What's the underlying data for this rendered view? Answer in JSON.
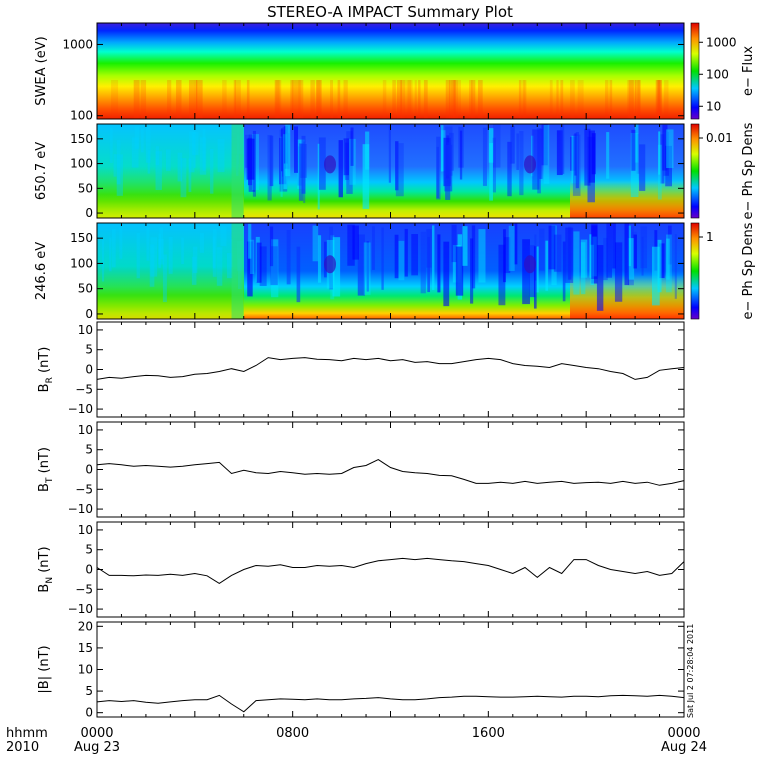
{
  "chart_data": {
    "type": "line",
    "title": "STEREO-A IMPACT Summary Plot",
    "x_axis": {
      "row1_label": "hhmm",
      "row2_label": "2010",
      "ticks": [
        {
          "hour": 0,
          "time": "0000",
          "date": "Aug 23"
        },
        {
          "hour": 8,
          "time": "0800",
          "date": ""
        },
        {
          "hour": 16,
          "time": "1600",
          "date": ""
        },
        {
          "hour": 24,
          "time": "0000",
          "date": "Aug 24"
        }
      ],
      "range_hours": [
        0,
        24
      ]
    },
    "spectrograms": [
      {
        "id": "swea",
        "ylabel": "SWEA (eV)",
        "yscale": "log",
        "ylim": [
          90,
          2000
        ],
        "yticks": [
          "1000",
          "100"
        ],
        "yticks_values": [
          1000,
          100
        ],
        "colorbar_label": "e− Flux",
        "colorbar_ticks": [
          "1000",
          "100",
          "10"
        ],
        "colorbar_tick_values": [
          1000,
          100,
          10
        ],
        "colorbar_range": [
          4,
          4000
        ]
      },
      {
        "id": "pad_650",
        "ylabel": "650.7 eV",
        "ylim": [
          -10,
          180
        ],
        "yticks": [
          "150",
          "100",
          "50",
          "0"
        ],
        "yticks_values": [
          150,
          100,
          50,
          0
        ],
        "colorbar_label": "e− Ph Sp Dens",
        "colorbar_ticks": [
          "0.01"
        ],
        "colorbar_tick_values": [
          0.01
        ]
      },
      {
        "id": "pad_246",
        "ylabel": "246.6 eV",
        "ylim": [
          -10,
          180
        ],
        "yticks": [
          "150",
          "100",
          "50",
          "0"
        ],
        "yticks_values": [
          150,
          100,
          50,
          0
        ],
        "colorbar_label": "e− Ph Sp Dens",
        "colorbar_ticks": [
          "1"
        ],
        "colorbar_tick_values": [
          1
        ]
      }
    ],
    "line_panels": [
      {
        "id": "br",
        "ylabel_main": "B",
        "ylabel_sub": "R",
        "ylabel_unit": " (nT)",
        "ylim": [
          -12,
          12
        ],
        "yticks": [
          "10",
          "5",
          "0",
          "−5",
          "−10"
        ],
        "yticks_values": [
          10,
          5,
          0,
          -5,
          -10
        ],
        "x": [
          0,
          0.5,
          1,
          1.5,
          2,
          2.5,
          3,
          3.5,
          4,
          4.5,
          5,
          5.5,
          6,
          6.5,
          7,
          7.5,
          8,
          8.5,
          9,
          9.5,
          10,
          10.5,
          11,
          11.5,
          12,
          12.5,
          13,
          13.5,
          14,
          14.5,
          15,
          15.5,
          16,
          16.5,
          17,
          17.5,
          18,
          18.5,
          19,
          19.5,
          20,
          20.5,
          21,
          21.5,
          22,
          22.5,
          23,
          23.5,
          24
        ],
        "y": [
          -2.5,
          -2,
          -2.2,
          -1.8,
          -1.5,
          -1.6,
          -2,
          -1.8,
          -1.2,
          -1,
          -0.5,
          0.2,
          -0.5,
          1,
          3,
          2.5,
          2.8,
          3,
          2.6,
          2.5,
          2.2,
          2.8,
          2.5,
          2.8,
          2.2,
          2.5,
          1.8,
          2,
          1.5,
          1.5,
          2,
          2.5,
          2.8,
          2.5,
          1.5,
          1,
          0.8,
          0.5,
          1.5,
          1,
          0.5,
          0.2,
          -0.5,
          -1,
          -2.5,
          -2,
          -0.2,
          0.2,
          0.5
        ]
      },
      {
        "id": "bt",
        "ylabel_main": "B",
        "ylabel_sub": "T",
        "ylabel_unit": " (nT)",
        "ylim": [
          -12,
          12
        ],
        "yticks": [
          "10",
          "5",
          "0",
          "−5",
          "−10"
        ],
        "yticks_values": [
          10,
          5,
          0,
          -5,
          -10
        ],
        "x": [
          0,
          0.5,
          1,
          1.5,
          2,
          2.5,
          3,
          3.5,
          4,
          4.5,
          5,
          5.5,
          6,
          6.5,
          7,
          7.5,
          8,
          8.5,
          9,
          9.5,
          10,
          10.5,
          11,
          11.5,
          12,
          12.5,
          13,
          13.5,
          14,
          14.5,
          15,
          15.5,
          16,
          16.5,
          17,
          17.5,
          18,
          18.5,
          19,
          19.5,
          20,
          20.5,
          21,
          21.5,
          22,
          22.5,
          23,
          23.5,
          24
        ],
        "y": [
          1.2,
          1.5,
          1.2,
          0.8,
          1,
          0.8,
          0.6,
          0.8,
          1.2,
          1.5,
          1.8,
          -1,
          -0.2,
          -0.8,
          -1,
          -0.5,
          -0.8,
          -1.2,
          -1,
          -1.2,
          -1,
          0.5,
          1,
          2.5,
          0.5,
          -0.5,
          -0.8,
          -1,
          -1.5,
          -1.6,
          -2.5,
          -3.5,
          -3.5,
          -3.2,
          -3.5,
          -3,
          -3.5,
          -3.2,
          -3,
          -3.5,
          -3.3,
          -3.2,
          -3.5,
          -3,
          -3.5,
          -3.2,
          -4,
          -3.5,
          -2.8
        ]
      },
      {
        "id": "bn",
        "ylabel_main": "B",
        "ylabel_sub": "N",
        "ylabel_unit": " (nT)",
        "ylim": [
          -12,
          12
        ],
        "yticks": [
          "10",
          "5",
          "0",
          "−5",
          "−10"
        ],
        "yticks_values": [
          10,
          5,
          0,
          -5,
          -10
        ],
        "x": [
          0,
          0.5,
          1,
          1.5,
          2,
          2.5,
          3,
          3.5,
          4,
          4.5,
          5,
          5.5,
          6,
          6.5,
          7,
          7.5,
          8,
          8.5,
          9,
          9.5,
          10,
          10.5,
          11,
          11.5,
          12,
          12.5,
          13,
          13.5,
          14,
          14.5,
          15,
          15.5,
          16,
          16.5,
          17,
          17.5,
          18,
          18.5,
          19,
          19.5,
          20,
          20.5,
          21,
          21.5,
          22,
          22.5,
          23,
          23.5,
          24
        ],
        "y": [
          0.5,
          -1.5,
          -1.5,
          -1.6,
          -1.4,
          -1.5,
          -1.2,
          -1.5,
          -1,
          -1.6,
          -3.5,
          -1.5,
          0,
          1,
          0.8,
          1.2,
          0.5,
          0.5,
          1,
          0.8,
          1,
          0.5,
          1.5,
          2.2,
          2.5,
          2.8,
          2.5,
          2.8,
          2.5,
          2.2,
          2,
          1.5,
          1,
          0,
          -1,
          0.5,
          -2,
          0.5,
          -1,
          2.5,
          2.5,
          1,
          0,
          -0.5,
          -1,
          -0.5,
          -1.5,
          -1,
          2
        ]
      },
      {
        "id": "bmag",
        "ylabel_main": "|B|",
        "ylabel_sub": "",
        "ylabel_unit": " (nT)",
        "ylim": [
          -1,
          21
        ],
        "yticks": [
          "20",
          "15",
          "10",
          "5",
          "0"
        ],
        "yticks_values": [
          20,
          15,
          10,
          5,
          0
        ],
        "x": [
          0,
          0.5,
          1,
          1.5,
          2,
          2.5,
          3,
          3.5,
          4,
          4.5,
          5,
          5.5,
          6,
          6.5,
          7,
          7.5,
          8,
          8.5,
          9,
          9.5,
          10,
          10.5,
          11,
          11.5,
          12,
          12.5,
          13,
          13.5,
          14,
          14.5,
          15,
          15.5,
          16,
          16.5,
          17,
          17.5,
          18,
          18.5,
          19,
          19.5,
          20,
          20.5,
          21,
          21.5,
          22,
          22.5,
          23,
          23.5,
          24
        ],
        "y": [
          2.5,
          2.8,
          2.6,
          2.8,
          2.4,
          2.2,
          2.5,
          2.8,
          3,
          3,
          4,
          2,
          0.2,
          2.8,
          3,
          3.2,
          3.1,
          3,
          3.2,
          3,
          3,
          3.2,
          3.3,
          3.5,
          3.2,
          3,
          3,
          3.2,
          3.5,
          3.6,
          3.8,
          3.8,
          3.7,
          3.6,
          3.6,
          3.7,
          3.8,
          3.7,
          3.6,
          3.8,
          3.8,
          3.7,
          3.9,
          4,
          3.9,
          3.8,
          4,
          3.8,
          3.5
        ]
      }
    ],
    "timestamp_note": "Sat Jul  2 07:28:04 2011"
  }
}
